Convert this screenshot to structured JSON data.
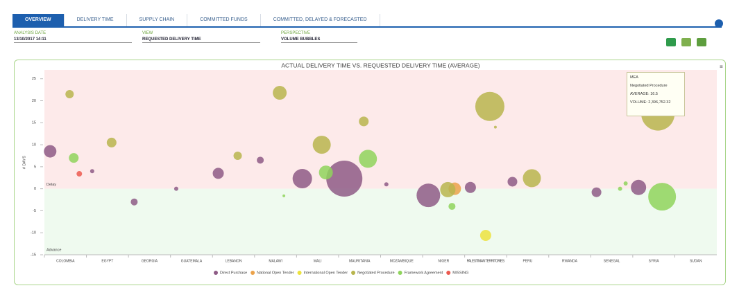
{
  "tabs": [
    "OVERVIEW",
    "DELIVERY TIME",
    "SUPPLY CHAIN",
    "COMMITTED FUNDS",
    "COMMITTED, DELAYED & FORECASTED"
  ],
  "filters": [
    {
      "label": "ANALYSIS DATE",
      "value": "13/10/2017 14:11"
    },
    {
      "label": "VIEW",
      "value": "REQUESTED DELIVERY TIME"
    },
    {
      "label": "PERSPECTIVE",
      "value": "VOLUME BUBBLES"
    }
  ],
  "tooltip": [
    "MEA",
    "Negotiated Procedure",
    "AVERAGE: 16.5",
    "VOLUME: 2,396,752.32"
  ],
  "chart_data": {
    "type": "bubble",
    "title": "ACTUAL DELIVERY TIME VS. REQUESTED DELIVERY TIME (AVERAGE)",
    "y_label": "# DAYS",
    "annotations": [
      "Delay",
      "Advance"
    ],
    "categories": [
      "COLOMBIA",
      "EGYPT",
      "GEORGIA",
      "GUATEMALA",
      "LEBANON",
      "MALAWI",
      "MALI",
      "MAURITANIA",
      "MOZAMBIQUE",
      "NIGER",
      "PALESTINIAN TERRITORIES",
      "PERU",
      "RWANDA",
      "SENEGAL",
      "SYRIA",
      "SUDAN"
    ],
    "ylim": [
      -15,
      27
    ],
    "yticks": [
      -15,
      -10,
      -5,
      0,
      5,
      10,
      15,
      20,
      25
    ],
    "series": [
      {
        "name": "Direct Purchase",
        "color": "#8e5b86",
        "x": [
          "COLOMBIA",
          "EGYPT",
          "GEORGIA",
          "GUATEMALA",
          "LEBANON",
          "MALAWI",
          "MALI",
          "MAURITANIA",
          "MOZAMBIQUE",
          "NIGER",
          "PALESTINIAN TERRITORIES",
          "PERU",
          "SENEGAL",
          "SYRIA"
        ],
        "values": [
          8.5,
          4,
          -3,
          0,
          3.5,
          6.5,
          2.3,
          2.3,
          1,
          -1.5,
          0.3,
          1.6,
          -0.8,
          0.3
        ],
        "sizes": [
          81,
          9,
          25,
          9,
          64,
          25,
          196,
          676,
          9,
          289,
          64,
          49,
          49,
          121
        ]
      },
      {
        "name": "National Open Tender",
        "color": "#eba24a",
        "x": [
          "NIGER"
        ],
        "values": [
          0
        ],
        "sizes": [
          81
        ]
      },
      {
        "name": "International Open Tender",
        "color": "#ece23e",
        "x": [
          "PALESTINIAN TERRITORIES"
        ],
        "values": [
          -10.6
        ],
        "sizes": [
          64
        ]
      },
      {
        "name": "Negotiated Procedure",
        "color": "#b8b54d",
        "x": [
          "COLOMBIA",
          "EGYPT",
          "LEBANON",
          "MALAWI",
          "MALI",
          "MAURITANIA",
          "NIGER",
          "PALESTINIAN TERRITORIES",
          "PALESTINIAN TERRITORIES",
          "PERU",
          "SYRIA"
        ],
        "values": [
          21.5,
          10.5,
          7.5,
          21.8,
          10,
          15.3,
          -0.2,
          18.7,
          14,
          2.4,
          17
        ],
        "sizes": [
          36,
          49,
          36,
          100,
          169,
          49,
          121,
          441,
          4,
          169,
          576
        ]
      },
      {
        "name": "Framework Agreement",
        "color": "#8fd45c",
        "x": [
          "COLOMBIA",
          "MALAWI",
          "MALI",
          "MAURITANIA",
          "NIGER",
          "SENEGAL",
          "SENEGAL",
          "SYRIA"
        ],
        "values": [
          7,
          -1.6,
          3.7,
          6.8,
          -4,
          0,
          1.2,
          -1.8
        ],
        "sizes": [
          49,
          4,
          100,
          169,
          25,
          9,
          9,
          400
        ]
      },
      {
        "name": "MISSING",
        "color": "#ec5a50",
        "x": [
          "COLOMBIA"
        ],
        "values": [
          3.4
        ],
        "sizes": [
          16
        ]
      }
    ]
  }
}
